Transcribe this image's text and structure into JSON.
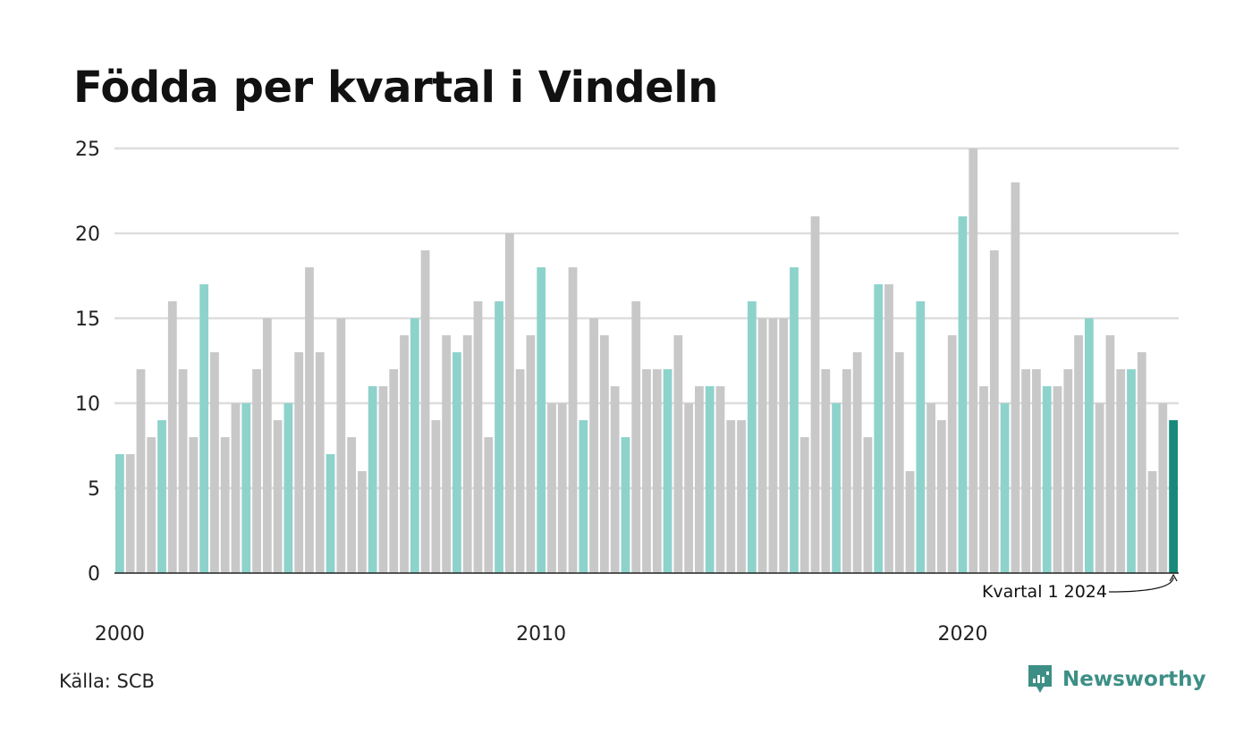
{
  "header": {
    "title": "Födda per kvartal i Vindeln"
  },
  "footer": {
    "source": "Källa: SCB",
    "brand": "Newsworthy"
  },
  "colors": {
    "q1_bar": "#8dd3cc",
    "other_bar": "#c8c8c8",
    "latest_bar": "#17897c",
    "grid": "#dddddd",
    "axis": "#222222",
    "brand": "#3d8f86"
  },
  "chart_data": {
    "type": "bar",
    "title": "Födda per kvartal i Vindeln",
    "xlabel": "",
    "ylabel": "",
    "ylim": [
      0,
      25
    ],
    "yticks": [
      0,
      5,
      10,
      15,
      20,
      25
    ],
    "xtick_labels": [
      "2000",
      "2010",
      "2020"
    ],
    "grid": true,
    "start_year": 2000,
    "start_quarter": 1,
    "highlight": "Kvartal 1 highlighted; latest quarter darker",
    "values": [
      7,
      7,
      12,
      8,
      9,
      16,
      12,
      8,
      17,
      13,
      8,
      10,
      10,
      12,
      15,
      9,
      10,
      13,
      18,
      13,
      7,
      15,
      8,
      6,
      11,
      11,
      12,
      14,
      15,
      19,
      9,
      14,
      13,
      14,
      16,
      8,
      16,
      20,
      12,
      14,
      18,
      10,
      10,
      18,
      9,
      15,
      14,
      11,
      8,
      16,
      12,
      12,
      12,
      14,
      10,
      11,
      11,
      11,
      9,
      9,
      16,
      15,
      15,
      15,
      18,
      8,
      21,
      12,
      10,
      12,
      13,
      8,
      17,
      17,
      13,
      6,
      16,
      10,
      9,
      14,
      21,
      25,
      11,
      19,
      10,
      23,
      12,
      12,
      11,
      11,
      12,
      14,
      15,
      10,
      14,
      12,
      12,
      13,
      6,
      10,
      9
    ],
    "annotation": "Kvartal 1 2024"
  }
}
